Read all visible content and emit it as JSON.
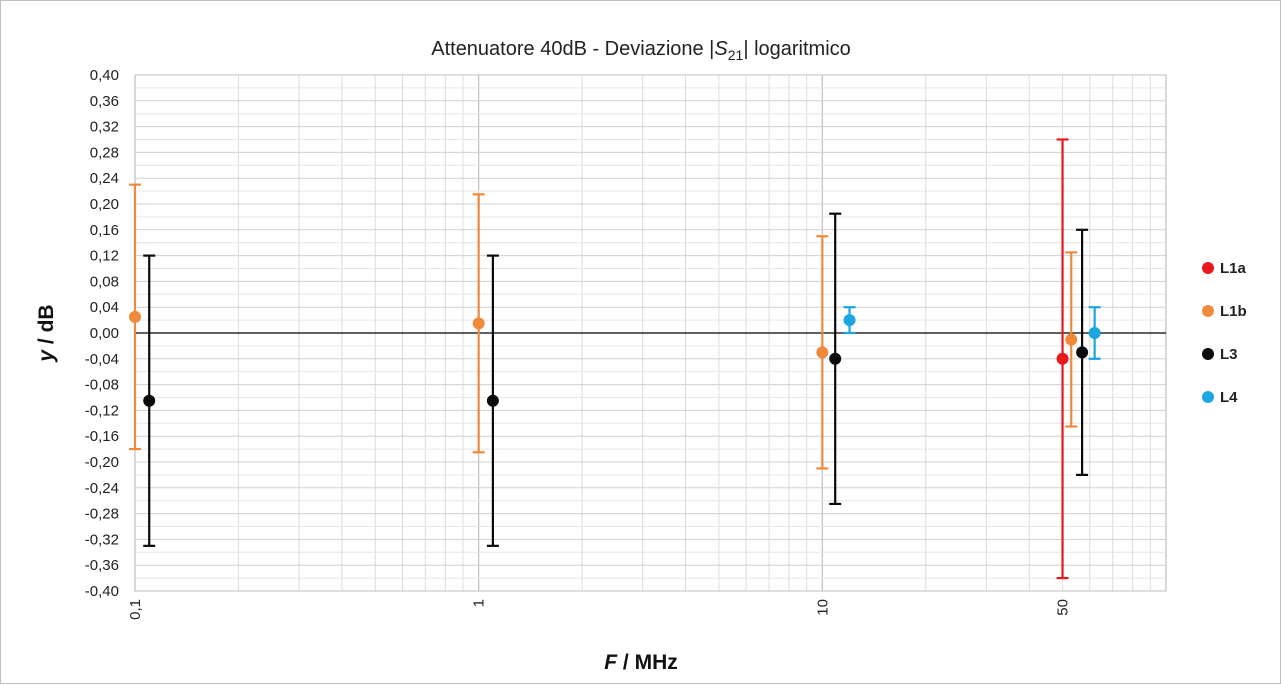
{
  "chart_data": {
    "type": "scatter",
    "title_parts": {
      "pre": "Attenuatore 40dB - Deviazione |",
      "sym": "S",
      "sub": "21",
      "post": "| logaritmico"
    },
    "xlabel": {
      "italic": "F",
      "rest": " / MHz"
    },
    "ylabel": {
      "italic": "y",
      "rest": " / dB"
    },
    "x_scale": "log",
    "xlim": [
      0.1,
      100
    ],
    "ylim": [
      -0.4,
      0.4
    ],
    "y_tick_step": 0.04,
    "y_tick_labels": [
      "-0,40",
      "-0,36",
      "-0,32",
      "-0,28",
      "-0,24",
      "-0,20",
      "-0,16",
      "-0,12",
      "-0,08",
      "-0,04",
      "0,00",
      "0,04",
      "0,08",
      "0,12",
      "0,16",
      "0,20",
      "0,24",
      "0,28",
      "0,32",
      "0,36",
      "0,40"
    ],
    "x_tick_labels": [
      {
        "value": 0.1,
        "label": "0,1"
      },
      {
        "value": 1,
        "label": "1"
      },
      {
        "value": 10,
        "label": "10"
      },
      {
        "value": 50,
        "label": "50"
      }
    ],
    "grid": true,
    "legend_position": "right",
    "series": [
      {
        "name": "L1a",
        "color": "#e8191c",
        "points": [
          {
            "x": 50,
            "y": -0.04,
            "err_low": -0.38,
            "err_high": 0.3
          }
        ]
      },
      {
        "name": "L1b",
        "color": "#ef8a3c",
        "points": [
          {
            "x": 0.1,
            "y": 0.025,
            "err_low": -0.18,
            "err_high": 0.23
          },
          {
            "x": 1,
            "y": 0.015,
            "err_low": -0.185,
            "err_high": 0.215
          },
          {
            "x": 10,
            "y": -0.03,
            "err_low": -0.21,
            "err_high": 0.15
          },
          {
            "x": 53,
            "y": -0.01,
            "err_low": -0.145,
            "err_high": 0.125
          }
        ]
      },
      {
        "name": "L3",
        "color": "#0a0a0a",
        "points": [
          {
            "x": 0.11,
            "y": -0.105,
            "err_low": -0.33,
            "err_high": 0.12
          },
          {
            "x": 1.1,
            "y": -0.105,
            "err_low": -0.33,
            "err_high": 0.12
          },
          {
            "x": 10.9,
            "y": -0.04,
            "err_low": -0.265,
            "err_high": 0.185
          },
          {
            "x": 57,
            "y": -0.03,
            "err_low": -0.22,
            "err_high": 0.16
          }
        ]
      },
      {
        "name": "L4",
        "color": "#1ba6e0",
        "points": [
          {
            "x": 12,
            "y": 0.02,
            "err_low": 0.0,
            "err_high": 0.04
          },
          {
            "x": 62,
            "y": 0.0,
            "err_low": -0.04,
            "err_high": 0.04
          }
        ]
      }
    ]
  }
}
